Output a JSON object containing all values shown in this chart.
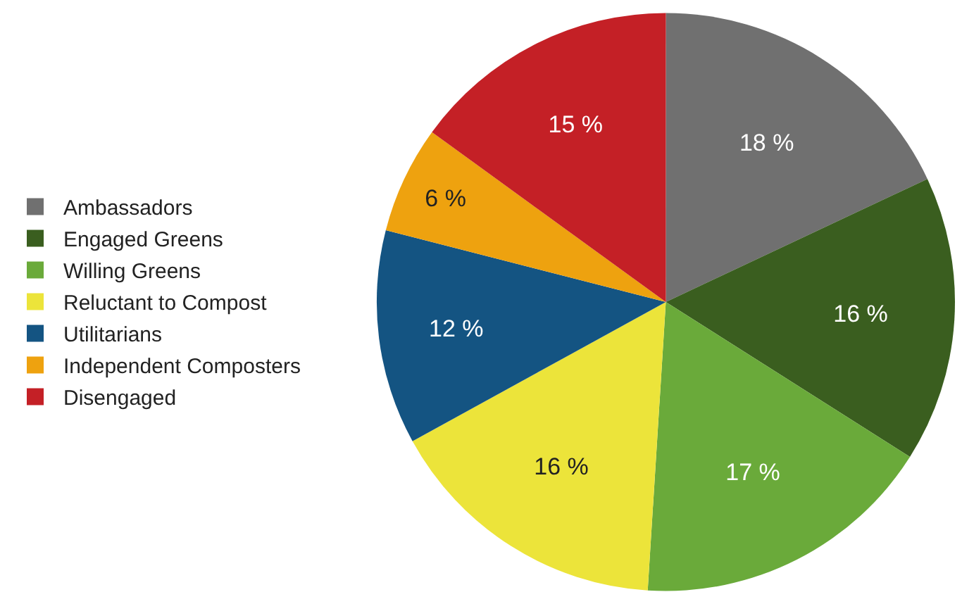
{
  "chart_data": {
    "type": "pie",
    "categories": [
      "Ambassadors",
      "Engaged Greens",
      "Willing Greens",
      "Reluctant to Compost",
      "Utilitarians",
      "Independent Composters",
      "Disengaged"
    ],
    "values": [
      18,
      16,
      17,
      16,
      12,
      6,
      15
    ],
    "value_labels": [
      "18 %",
      "16 %",
      "17 %",
      "16 %",
      "12 %",
      "6 %",
      "15 %"
    ],
    "colors": [
      "#707070",
      "#3a5e1f",
      "#6aaa3a",
      "#ece43a",
      "#145482",
      "#eea20f",
      "#c42026"
    ],
    "legend": "left"
  }
}
